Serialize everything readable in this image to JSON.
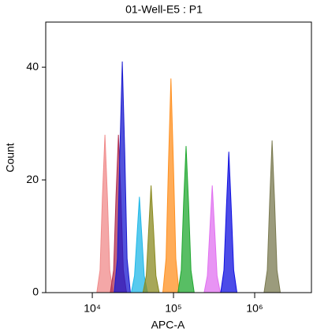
{
  "chart_data": {
    "type": "histogram-overlay",
    "title": "01-Well-E5 : P1",
    "x_label": "APC-A",
    "y_label": "Count",
    "log_x": true,
    "xlim": [
      2670,
      5000000
    ],
    "ylim": [
      0,
      48
    ],
    "xticks": [
      {
        "value": 10000,
        "label": "10⁴"
      },
      {
        "value": 100000,
        "label": "10⁵"
      },
      {
        "value": 1000000,
        "label": "10⁶"
      }
    ],
    "yticks": [
      0,
      20,
      40
    ],
    "series": [
      {
        "color": "#f08a8a",
        "x": [
          11360,
          12460,
          13340,
          14300,
          15330,
          16420,
          18000
        ],
        "values": [
          0,
          4,
          17,
          28,
          17,
          4,
          0
        ]
      },
      {
        "color": "#b03050",
        "x": [
          16680,
          18290,
          19590,
          21000,
          22510,
          24110,
          26440
        ],
        "values": [
          0,
          4,
          17,
          28,
          17,
          4,
          0
        ]
      },
      {
        "color": "#1a1ad0",
        "x": [
          18590,
          20380,
          21830,
          23400,
          25080,
          26860,
          29460
        ],
        "values": [
          0,
          6,
          25,
          41,
          25,
          6,
          0
        ]
      },
      {
        "color": "#20b8e8",
        "x": [
          30180,
          33100,
          35450,
          38000,
          40740,
          43620,
          47840
        ],
        "values": [
          0,
          3,
          10,
          17,
          10,
          3,
          0
        ]
      },
      {
        "color": "#8a8a20",
        "x": [
          42100,
          46170,
          49440,
          53000,
          56820,
          60840,
          66730
        ],
        "values": [
          0,
          3,
          11,
          19,
          11,
          3,
          0
        ]
      },
      {
        "color": "#ff9020",
        "x": [
          73870,
          81010,
          86750,
          93000,
          99700,
          106800,
          117100
        ],
        "values": [
          0,
          6,
          23,
          38,
          23,
          6,
          0
        ]
      },
      {
        "color": "#20a830",
        "x": [
          113600,
          124600,
          133400,
          143000,
          153300,
          164200,
          180000
        ],
        "values": [
          0,
          4,
          16,
          26,
          16,
          4,
          0
        ]
      },
      {
        "color": "#e070f0",
        "x": [
          238300,
          261300,
          279900,
          300000,
          321600,
          344400,
          377700
        ],
        "values": [
          0,
          3,
          11,
          19,
          11,
          3,
          0
        ]
      },
      {
        "color": "#1010e0",
        "x": [
          381300,
          418100,
          447800,
          480000,
          514600,
          551000,
          604300
        ],
        "values": [
          0,
          4,
          15,
          25,
          15,
          4,
          0
        ]
      },
      {
        "color": "#7a7a50",
        "x": [
          1303000,
          1429000,
          1530000,
          1640000,
          1758000,
          1883000,
          2065000
        ],
        "values": [
          0,
          4,
          16,
          27,
          16,
          4,
          0
        ]
      }
    ]
  }
}
